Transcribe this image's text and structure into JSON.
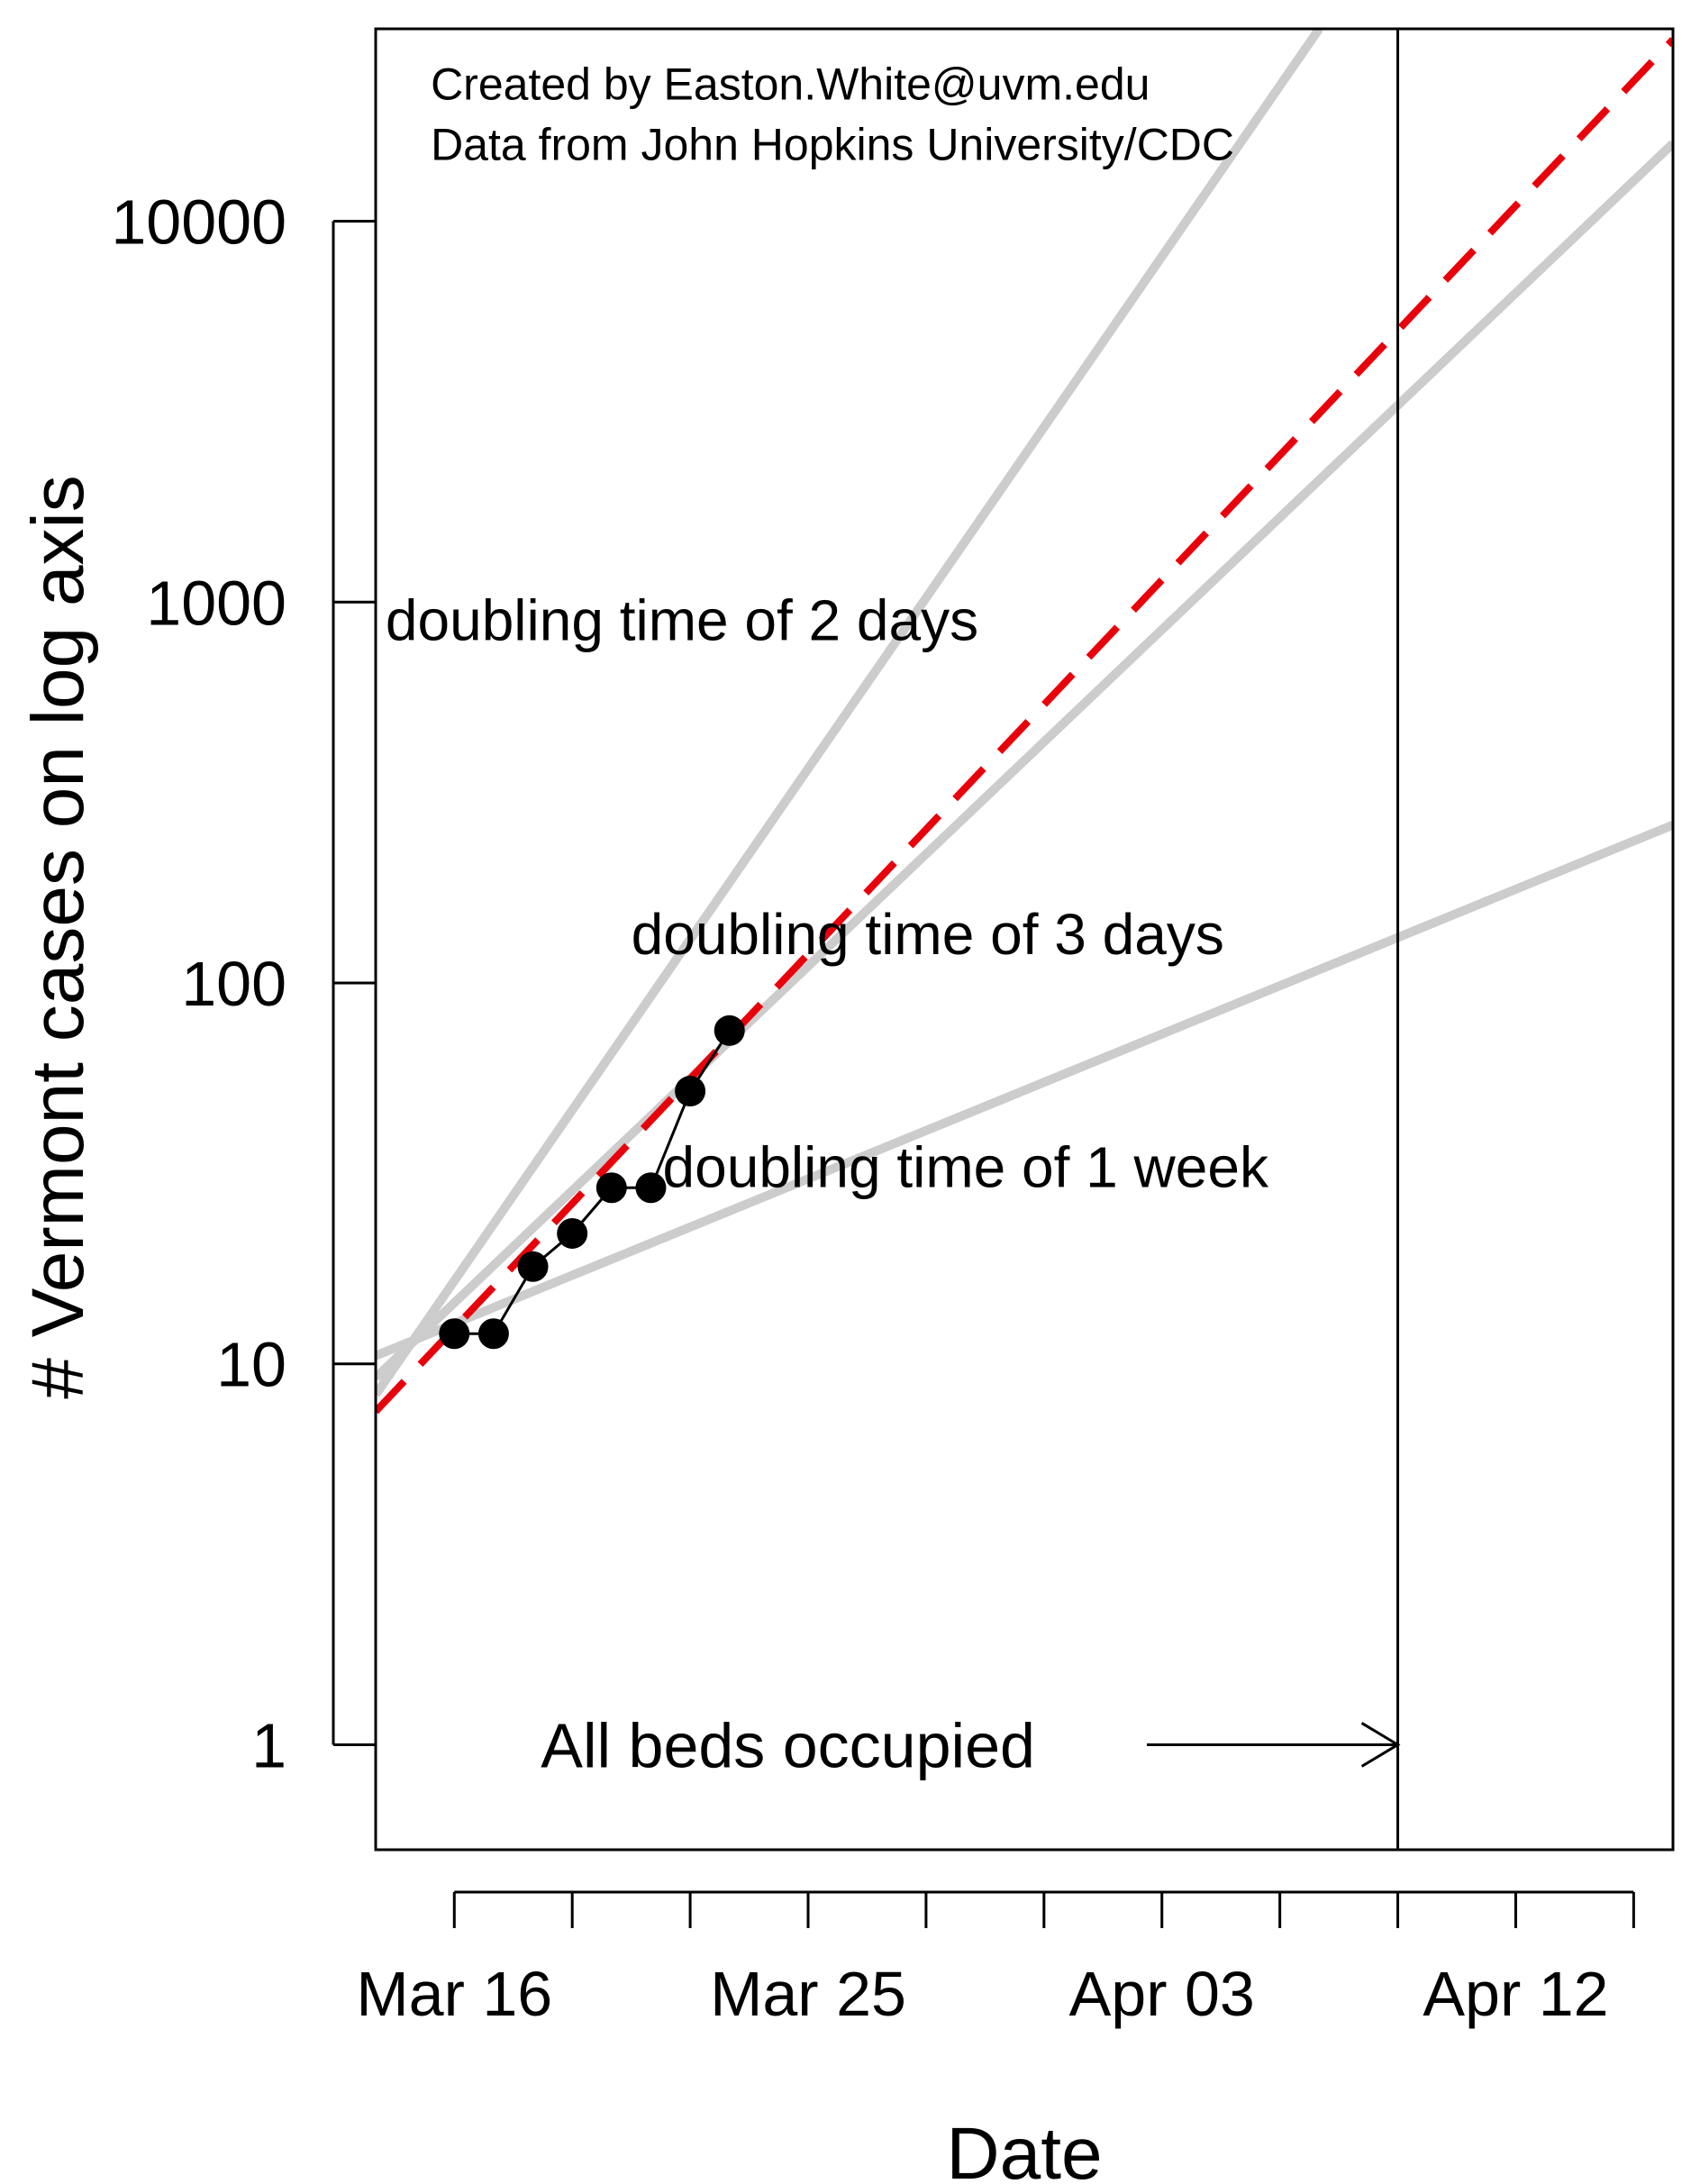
{
  "chart_data": {
    "type": "line",
    "title": "",
    "xlabel": "Date",
    "ylabel": "# Vermont cases on log axis",
    "y_scale": "log10",
    "ylim": [
      0.53,
      32000
    ],
    "xlim": [
      "2020-03-14",
      "2020-04-16"
    ],
    "x_ticks": [
      "2020-03-16",
      "2020-03-19",
      "2020-03-22",
      "2020-03-25",
      "2020-03-28",
      "2020-03-31",
      "2020-04-03",
      "2020-04-06",
      "2020-04-09",
      "2020-04-12",
      "2020-04-15"
    ],
    "x_tick_labels": [
      {
        "date": "2020-03-16",
        "label": "Mar 16"
      },
      {
        "date": "2020-03-25",
        "label": "Mar 25"
      },
      {
        "date": "2020-04-03",
        "label": "Apr 03"
      },
      {
        "date": "2020-04-12",
        "label": "Apr 12"
      }
    ],
    "y_ticks": [
      {
        "value": 1,
        "label": "1"
      },
      {
        "value": 10,
        "label": "10"
      },
      {
        "value": 100,
        "label": "100"
      },
      {
        "value": 1000,
        "label": "1000"
      },
      {
        "value": 10000,
        "label": "10000"
      }
    ],
    "grid": false,
    "observed": {
      "x": [
        "2020-03-16",
        "2020-03-17",
        "2020-03-18",
        "2020-03-19",
        "2020-03-20",
        "2020-03-21",
        "2020-03-22",
        "2020-03-23"
      ],
      "y": [
        12,
        12,
        18,
        22,
        29,
        29,
        52,
        75
      ],
      "color": "#000000",
      "marker": "circle"
    },
    "fit_line": {
      "style": "dashed",
      "color": "#e8000b",
      "start": {
        "x": "2020-03-14",
        "y": 7.5
      },
      "end": {
        "x": "2020-04-16",
        "y": 30000
      }
    },
    "reference_lines": [
      {
        "label": "doubling time of 2 days",
        "color": "#cccccc",
        "start": {
          "x": "2020-03-14",
          "y": 8.3
        },
        "end": {
          "x": "2020-04-07",
          "y": 32000
        }
      },
      {
        "label": "doubling time of 3 days",
        "color": "#cccccc",
        "start": {
          "x": "2020-03-14",
          "y": 9.2
        },
        "end": {
          "x": "2020-04-16",
          "y": 16000
        }
      },
      {
        "label": "doubling time of 1 week",
        "color": "#cccccc",
        "start": {
          "x": "2020-03-14",
          "y": 10.5
        },
        "end": {
          "x": "2020-04-16",
          "y": 260
        }
      }
    ],
    "vertical_line": {
      "x": "2020-04-09",
      "color": "#000000"
    },
    "annotations": [
      {
        "text": "Created by Easton.White@uvm.edu",
        "x": "2020-03-15.4",
        "y": 23000
      },
      {
        "text": "Data from John Hopkins University/CDC",
        "x": "2020-03-15.4",
        "y": 16000
      },
      {
        "text": "doubling time of 2 days",
        "x": "2020-03-14.25",
        "y": 900
      },
      {
        "text": "doubling time of 3 days",
        "x": "2020-03-20.5",
        "y": 135
      },
      {
        "text": "doubling time of 1 week",
        "x": "2020-03-21.3",
        "y": 33
      },
      {
        "text": "All beds occupied",
        "x": "2020-03-18.2",
        "y": 1.0,
        "arrow_to": {
          "x": "2020-04-09",
          "y": 1.0
        }
      }
    ]
  }
}
